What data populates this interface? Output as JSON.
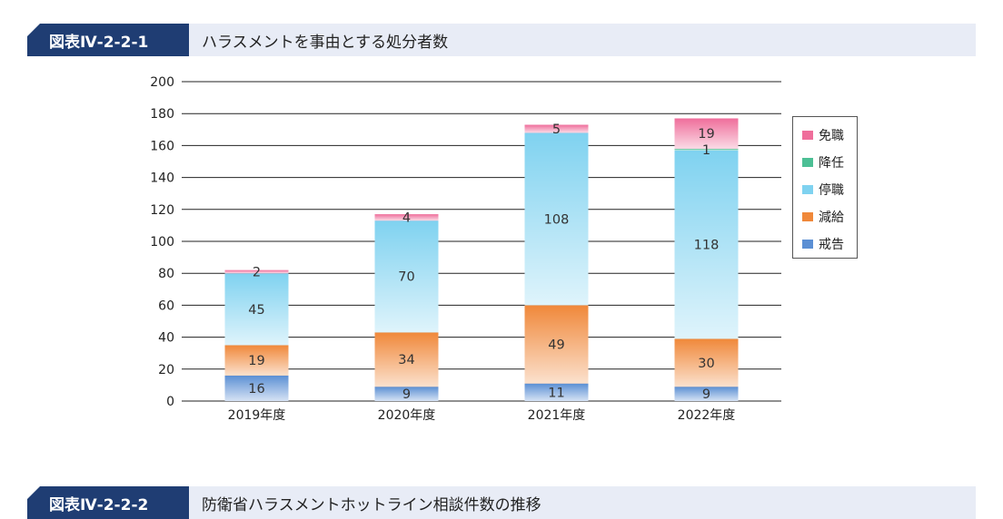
{
  "header1": {
    "tag": "図表Ⅳ-2-2-1",
    "title": "ハラスメントを事由とする処分者数"
  },
  "header2": {
    "tag": "図表Ⅳ-2-2-2",
    "title": "防衛省ハラスメントホットライン相談件数の推移"
  },
  "chart_data": {
    "type": "bar",
    "stacked": true,
    "categories": [
      "2019年度",
      "2020年度",
      "2021年度",
      "2022年度"
    ],
    "ylim": [
      0,
      200
    ],
    "yticks": [
      0,
      20,
      40,
      60,
      80,
      100,
      120,
      140,
      160,
      180,
      200
    ],
    "grid": true,
    "legend": "right",
    "series": [
      {
        "name": "戒告",
        "values": [
          16,
          9,
          11,
          9
        ],
        "color": "#5b8fd4"
      },
      {
        "name": "減給",
        "values": [
          19,
          34,
          49,
          30
        ],
        "color": "#f0883a"
      },
      {
        "name": "停職",
        "values": [
          45,
          70,
          108,
          118
        ],
        "color": "#7fd2f0"
      },
      {
        "name": "降任",
        "values": [
          0,
          0,
          0,
          1
        ],
        "color": "#4cbf95"
      },
      {
        "name": "免職",
        "values": [
          2,
          4,
          5,
          19
        ],
        "color": "#ef6e9b"
      }
    ],
    "legend_order": [
      "免職",
      "降任",
      "停職",
      "減給",
      "戒告"
    ]
  }
}
